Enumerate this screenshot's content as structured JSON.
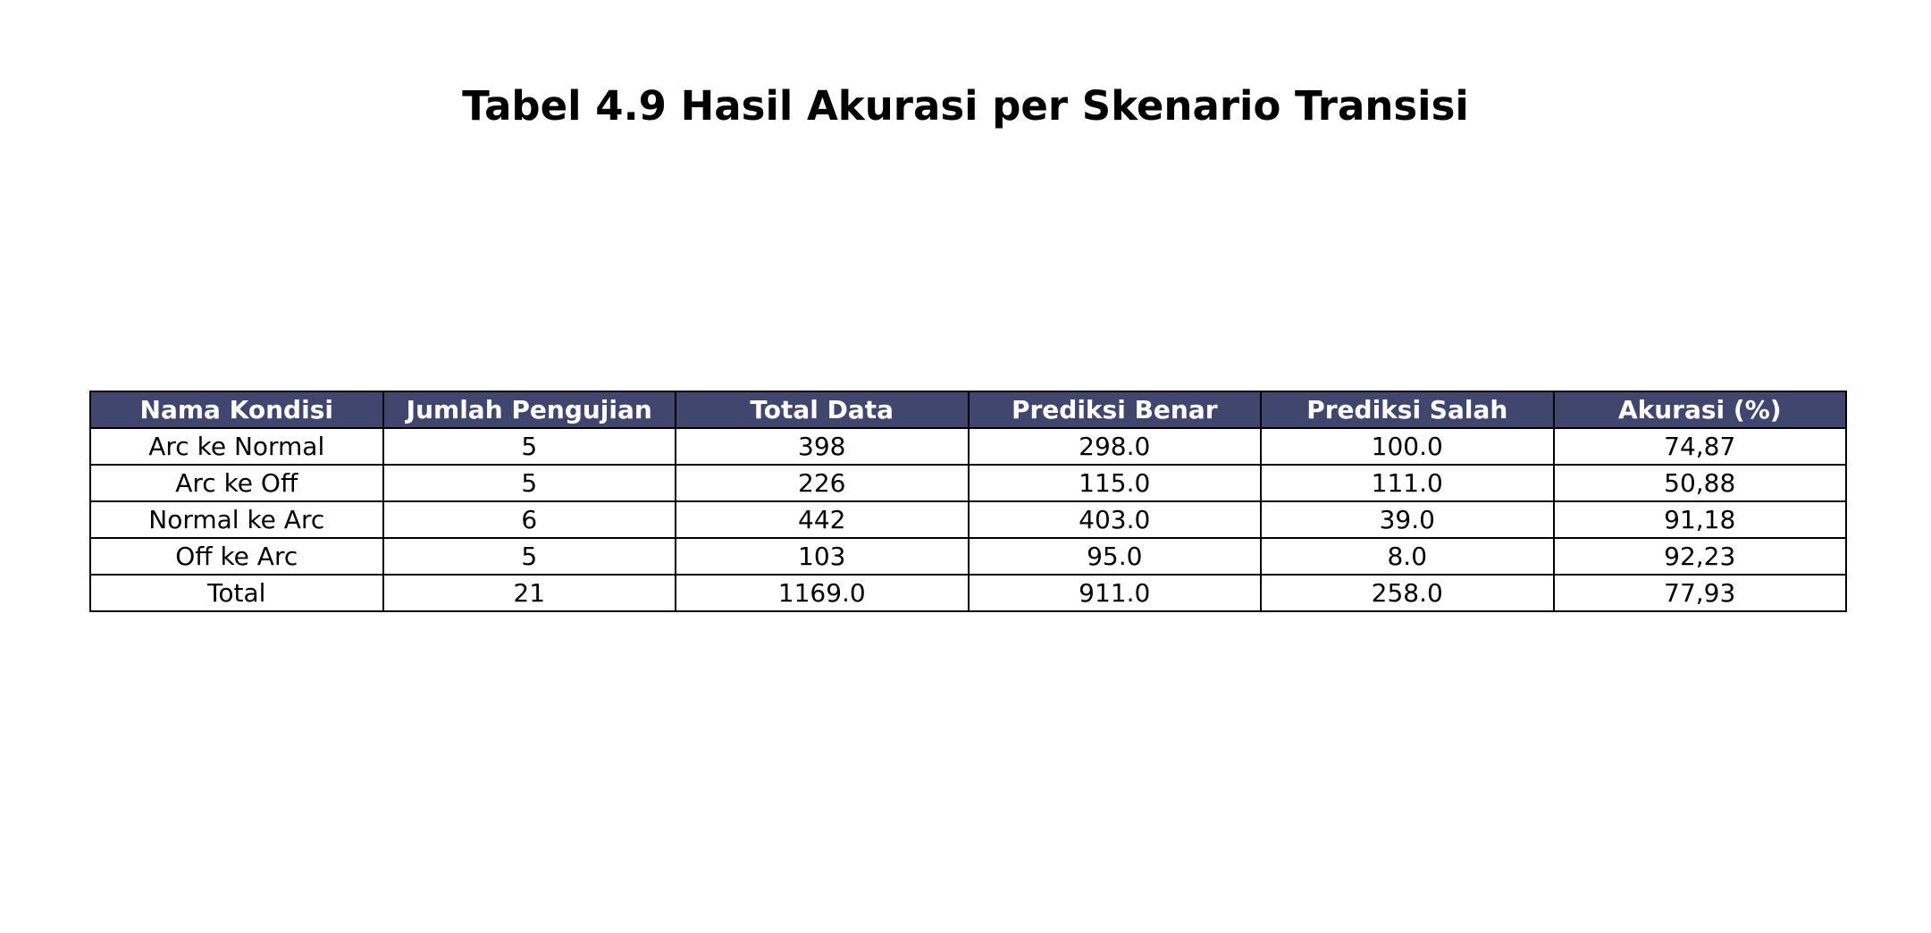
{
  "chart_data": {
    "type": "table",
    "title": "Tabel 4.9 Hasil Akurasi per Skenario Transisi",
    "header_color": "#40466e",
    "header_text_color": "#ffffff",
    "columns": [
      "Nama Kondisi",
      "Jumlah Pengujian",
      "Total Data",
      "Prediksi Benar",
      "Prediksi Salah",
      "Akurasi (%)"
    ],
    "rows": [
      [
        "Arc ke Normal",
        "5",
        "398",
        "298.0",
        "100.0",
        "74,87"
      ],
      [
        "Arc ke Off",
        "5",
        "226",
        "115.0",
        "111.0",
        "50,88"
      ],
      [
        "Normal ke Arc",
        "6",
        "442",
        "403.0",
        "39.0",
        "91,18"
      ],
      [
        "Off ke Arc",
        "5",
        "103",
        "95.0",
        "8.0",
        "92,23"
      ],
      [
        "Total",
        "21",
        "1169.0",
        "911.0",
        "258.0",
        "77,93"
      ]
    ]
  }
}
